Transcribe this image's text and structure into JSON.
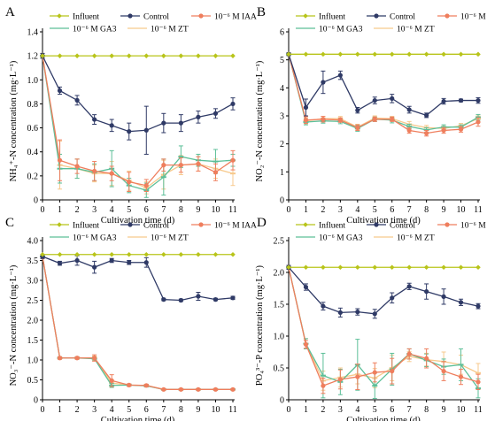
{
  "legend_labels": {
    "influent": "Influent",
    "control": "Control",
    "iaa": "10⁻⁶ M IAA",
    "ga3": "10⁻⁶ M GA3",
    "zt": "10⁻⁶ M ZT"
  },
  "colors": {
    "influent": "#b8c41a",
    "control": "#2f3a66",
    "iaa": "#ef7e5d",
    "ga3": "#5cbf98",
    "zt": "#f7c98c",
    "axis": "#000000"
  },
  "chart_data": [
    {
      "panel_label": "A",
      "type": "line",
      "xlabel": "Cultivation time (d)",
      "ylabel": "NH₄⁺-N concentration (mg·L⁻¹)",
      "ylim": [
        0,
        1.4
      ],
      "yticks": [
        "0",
        "0.2",
        "0.4",
        "0.6",
        "0.8",
        "1.0",
        "1.2",
        "1.4"
      ],
      "x": [
        0,
        1,
        2,
        3,
        4,
        5,
        6,
        7,
        8,
        9,
        10,
        11
      ],
      "series": [
        {
          "name": "Influent",
          "key": "influent",
          "marker": "diamond",
          "values": [
            1.2,
            1.2,
            1.2,
            1.2,
            1.2,
            1.2,
            1.2,
            1.2,
            1.2,
            1.2,
            1.2,
            1.2
          ],
          "errors": [
            0,
            0,
            0,
            0,
            0,
            0,
            0,
            0,
            0,
            0,
            0,
            0
          ]
        },
        {
          "name": "Control",
          "key": "control",
          "marker": "circle",
          "values": [
            1.2,
            0.91,
            0.83,
            0.67,
            0.62,
            0.57,
            0.58,
            0.64,
            0.64,
            0.69,
            0.72,
            0.8
          ],
          "errors": [
            0.02,
            0.03,
            0.04,
            0.04,
            0.05,
            0.07,
            0.2,
            0.08,
            0.07,
            0.05,
            0.04,
            0.05
          ]
        },
        {
          "name": "10⁻⁶ M IAA",
          "key": "iaa",
          "marker": "circle",
          "values": [
            1.2,
            0.33,
            0.28,
            0.24,
            0.22,
            0.15,
            0.12,
            0.29,
            0.29,
            0.3,
            0.23,
            0.33
          ],
          "errors": [
            0.02,
            0.17,
            0.06,
            0.08,
            0.06,
            0.08,
            0.05,
            0.05,
            0.06,
            0.06,
            0.07,
            0.08
          ]
        },
        {
          "name": "10⁻⁶ M GA3",
          "key": "ga3",
          "marker": "line",
          "values": [
            1.2,
            0.26,
            0.26,
            0.23,
            0.26,
            0.12,
            0.08,
            0.19,
            0.36,
            0.33,
            0.32,
            0.33
          ],
          "errors": [
            0.02,
            0.12,
            0.08,
            0.07,
            0.15,
            0.06,
            0.06,
            0.15,
            0.09,
            0.05,
            0.1,
            0.05
          ]
        },
        {
          "name": "10⁻⁶ M ZT",
          "key": "zt",
          "marker": "line",
          "values": [
            1.2,
            0.29,
            0.26,
            0.22,
            0.22,
            0.16,
            0.1,
            0.21,
            0.29,
            0.3,
            0.26,
            0.22
          ],
          "errors": [
            0.02,
            0.2,
            0.08,
            0.07,
            0.1,
            0.08,
            0.05,
            0.12,
            0.08,
            0.06,
            0.08,
            0.1
          ]
        }
      ]
    },
    {
      "panel_label": "B",
      "type": "line",
      "xlabel": "Cultivation time (d)",
      "ylabel": "NO₂⁻-N concentration (mg·L⁻¹)",
      "ylim": [
        0,
        6
      ],
      "yticks": [
        "0",
        "1",
        "2",
        "3",
        "4",
        "5",
        "6"
      ],
      "x": [
        0,
        1,
        2,
        3,
        4,
        5,
        6,
        7,
        8,
        9,
        10,
        11
      ],
      "series": [
        {
          "name": "Influent",
          "key": "influent",
          "marker": "diamond",
          "values": [
            5.2,
            5.2,
            5.2,
            5.2,
            5.2,
            5.2,
            5.2,
            5.2,
            5.2,
            5.2,
            5.2,
            5.2
          ],
          "errors": [
            0,
            0,
            0,
            0,
            0,
            0,
            0,
            0,
            0,
            0,
            0,
            0
          ]
        },
        {
          "name": "Control",
          "key": "control",
          "marker": "circle",
          "values": [
            5.2,
            3.3,
            4.2,
            4.45,
            3.2,
            3.55,
            3.62,
            3.22,
            3.02,
            3.52,
            3.55,
            3.55
          ],
          "errors": [
            0.05,
            0.3,
            0.4,
            0.15,
            0.1,
            0.12,
            0.15,
            0.12,
            0.08,
            0.1,
            0.05,
            0.1
          ]
        },
        {
          "name": "10⁻⁶ M IAA",
          "key": "iaa",
          "marker": "circle",
          "values": [
            5.2,
            2.85,
            2.88,
            2.85,
            2.58,
            2.88,
            2.88,
            2.48,
            2.38,
            2.48,
            2.52,
            2.78
          ],
          "errors": [
            0.05,
            0.12,
            0.1,
            0.08,
            0.1,
            0.08,
            0.08,
            0.1,
            0.1,
            0.1,
            0.1,
            0.15
          ]
        },
        {
          "name": "10⁻⁶ M GA3",
          "key": "ga3",
          "marker": "line",
          "values": [
            5.2,
            2.78,
            2.82,
            2.8,
            2.55,
            2.88,
            2.85,
            2.62,
            2.5,
            2.6,
            2.6,
            2.95
          ],
          "errors": [
            0.05,
            0.1,
            0.08,
            0.08,
            0.1,
            0.08,
            0.1,
            0.08,
            0.08,
            0.08,
            0.08,
            0.1
          ]
        },
        {
          "name": "10⁻⁶ M ZT",
          "key": "zt",
          "marker": "line",
          "values": [
            5.2,
            2.82,
            2.9,
            2.9,
            2.6,
            2.92,
            2.9,
            2.7,
            2.58,
            2.55,
            2.65,
            2.9
          ],
          "errors": [
            0.05,
            0.1,
            0.08,
            0.08,
            0.1,
            0.08,
            0.08,
            0.1,
            0.08,
            0.08,
            0.08,
            0.1
          ]
        }
      ]
    },
    {
      "panel_label": "C",
      "type": "line",
      "xlabel": "Cultivation time (d)",
      "ylabel": "NO₃⁻-N concentration (mg·L⁻¹)",
      "ylim": [
        0,
        4.0
      ],
      "yticks": [
        "0",
        "0.5",
        "1.0",
        "1.5",
        "2.0",
        "2.5",
        "3.0",
        "3.5",
        "4.0"
      ],
      "x": [
        0,
        1,
        2,
        3,
        4,
        5,
        6,
        7,
        8,
        9,
        10,
        11
      ],
      "series": [
        {
          "name": "Influent",
          "key": "influent",
          "marker": "diamond",
          "values": [
            3.65,
            3.65,
            3.65,
            3.65,
            3.65,
            3.65,
            3.65,
            3.65,
            3.65,
            3.65,
            3.65,
            3.65
          ],
          "errors": [
            0,
            0,
            0,
            0,
            0,
            0,
            0,
            0,
            0,
            0,
            0,
            0
          ]
        },
        {
          "name": "Control",
          "key": "control",
          "marker": "circle",
          "values": [
            3.6,
            3.43,
            3.5,
            3.33,
            3.5,
            3.45,
            3.45,
            2.52,
            2.5,
            2.6,
            2.52,
            2.56
          ],
          "errors": [
            0.05,
            0.05,
            0.12,
            0.15,
            0.05,
            0.05,
            0.12,
            0.03,
            0.03,
            0.1,
            0.03,
            0.04
          ]
        },
        {
          "name": "10⁻⁶ M IAA",
          "key": "iaa",
          "marker": "circle",
          "values": [
            3.6,
            1.05,
            1.05,
            1.05,
            0.48,
            0.37,
            0.36,
            0.26,
            0.26,
            0.26,
            0.26,
            0.26
          ],
          "errors": [
            0.05,
            0.03,
            0.03,
            0.08,
            0.15,
            0.03,
            0.03,
            0.02,
            0.02,
            0.02,
            0.02,
            0.02
          ]
        },
        {
          "name": "10⁻⁶ M GA3",
          "key": "ga3",
          "marker": "line",
          "values": [
            3.6,
            1.05,
            1.05,
            1.03,
            0.36,
            0.37,
            0.35,
            0.26,
            0.26,
            0.26,
            0.26,
            0.26
          ],
          "errors": [
            0.05,
            0.03,
            0.03,
            0.05,
            0.05,
            0.03,
            0.03,
            0.02,
            0.02,
            0.02,
            0.02,
            0.02
          ]
        },
        {
          "name": "10⁻⁶ M ZT",
          "key": "zt",
          "marker": "line",
          "values": [
            3.6,
            1.05,
            1.05,
            1.05,
            0.42,
            0.37,
            0.36,
            0.26,
            0.26,
            0.26,
            0.26,
            0.26
          ],
          "errors": [
            0.05,
            0.03,
            0.03,
            0.05,
            0.08,
            0.03,
            0.03,
            0.02,
            0.02,
            0.02,
            0.02,
            0.02
          ]
        }
      ]
    },
    {
      "panel_label": "D",
      "type": "line",
      "xlabel": "Cultivation time (d)",
      "ylabel": "PO₄³⁻-P concentration (mg·L⁻¹)",
      "ylim": [
        0,
        2.5
      ],
      "yticks": [
        "0",
        "0.5",
        "1.0",
        "1.5",
        "2.0",
        "2.5"
      ],
      "x": [
        0,
        1,
        2,
        3,
        4,
        5,
        6,
        7,
        8,
        9,
        10,
        11
      ],
      "series": [
        {
          "name": "Influent",
          "key": "influent",
          "marker": "diamond",
          "values": [
            2.08,
            2.08,
            2.08,
            2.08,
            2.08,
            2.08,
            2.08,
            2.08,
            2.08,
            2.08,
            2.08,
            2.08
          ],
          "errors": [
            0,
            0,
            0,
            0,
            0,
            0,
            0,
            0,
            0,
            0,
            0,
            0
          ]
        },
        {
          "name": "Control",
          "key": "control",
          "marker": "circle",
          "values": [
            2.08,
            1.77,
            1.47,
            1.37,
            1.38,
            1.35,
            1.6,
            1.78,
            1.7,
            1.62,
            1.53,
            1.47
          ],
          "errors": [
            0.03,
            0.05,
            0.06,
            0.07,
            0.05,
            0.07,
            0.08,
            0.05,
            0.12,
            0.12,
            0.05,
            0.04
          ]
        },
        {
          "name": "10⁻⁶ M IAA",
          "key": "iaa",
          "marker": "circle",
          "values": [
            2.08,
            0.87,
            0.22,
            0.32,
            0.36,
            0.43,
            0.45,
            0.72,
            0.65,
            0.45,
            0.36,
            0.28
          ],
          "errors": [
            0.03,
            0.06,
            0.12,
            0.15,
            0.2,
            0.15,
            0.2,
            0.08,
            0.15,
            0.15,
            0.12,
            0.12
          ]
        },
        {
          "name": "10⁻⁶ M GA3",
          "key": "ga3",
          "marker": "line",
          "values": [
            2.08,
            0.88,
            0.38,
            0.28,
            0.55,
            0.22,
            0.48,
            0.72,
            0.62,
            0.52,
            0.55,
            0.18
          ],
          "errors": [
            0.03,
            0.08,
            0.35,
            0.2,
            0.4,
            0.2,
            0.25,
            0.08,
            0.1,
            0.12,
            0.25,
            0.15
          ]
        },
        {
          "name": "10⁻⁶ M ZT",
          "key": "zt",
          "marker": "line",
          "values": [
            2.08,
            0.88,
            0.3,
            0.35,
            0.4,
            0.34,
            0.5,
            0.68,
            0.63,
            0.6,
            0.55,
            0.42
          ],
          "errors": [
            0.03,
            0.08,
            0.15,
            0.15,
            0.15,
            0.15,
            0.2,
            0.08,
            0.1,
            0.15,
            0.15,
            0.15
          ]
        }
      ]
    }
  ]
}
